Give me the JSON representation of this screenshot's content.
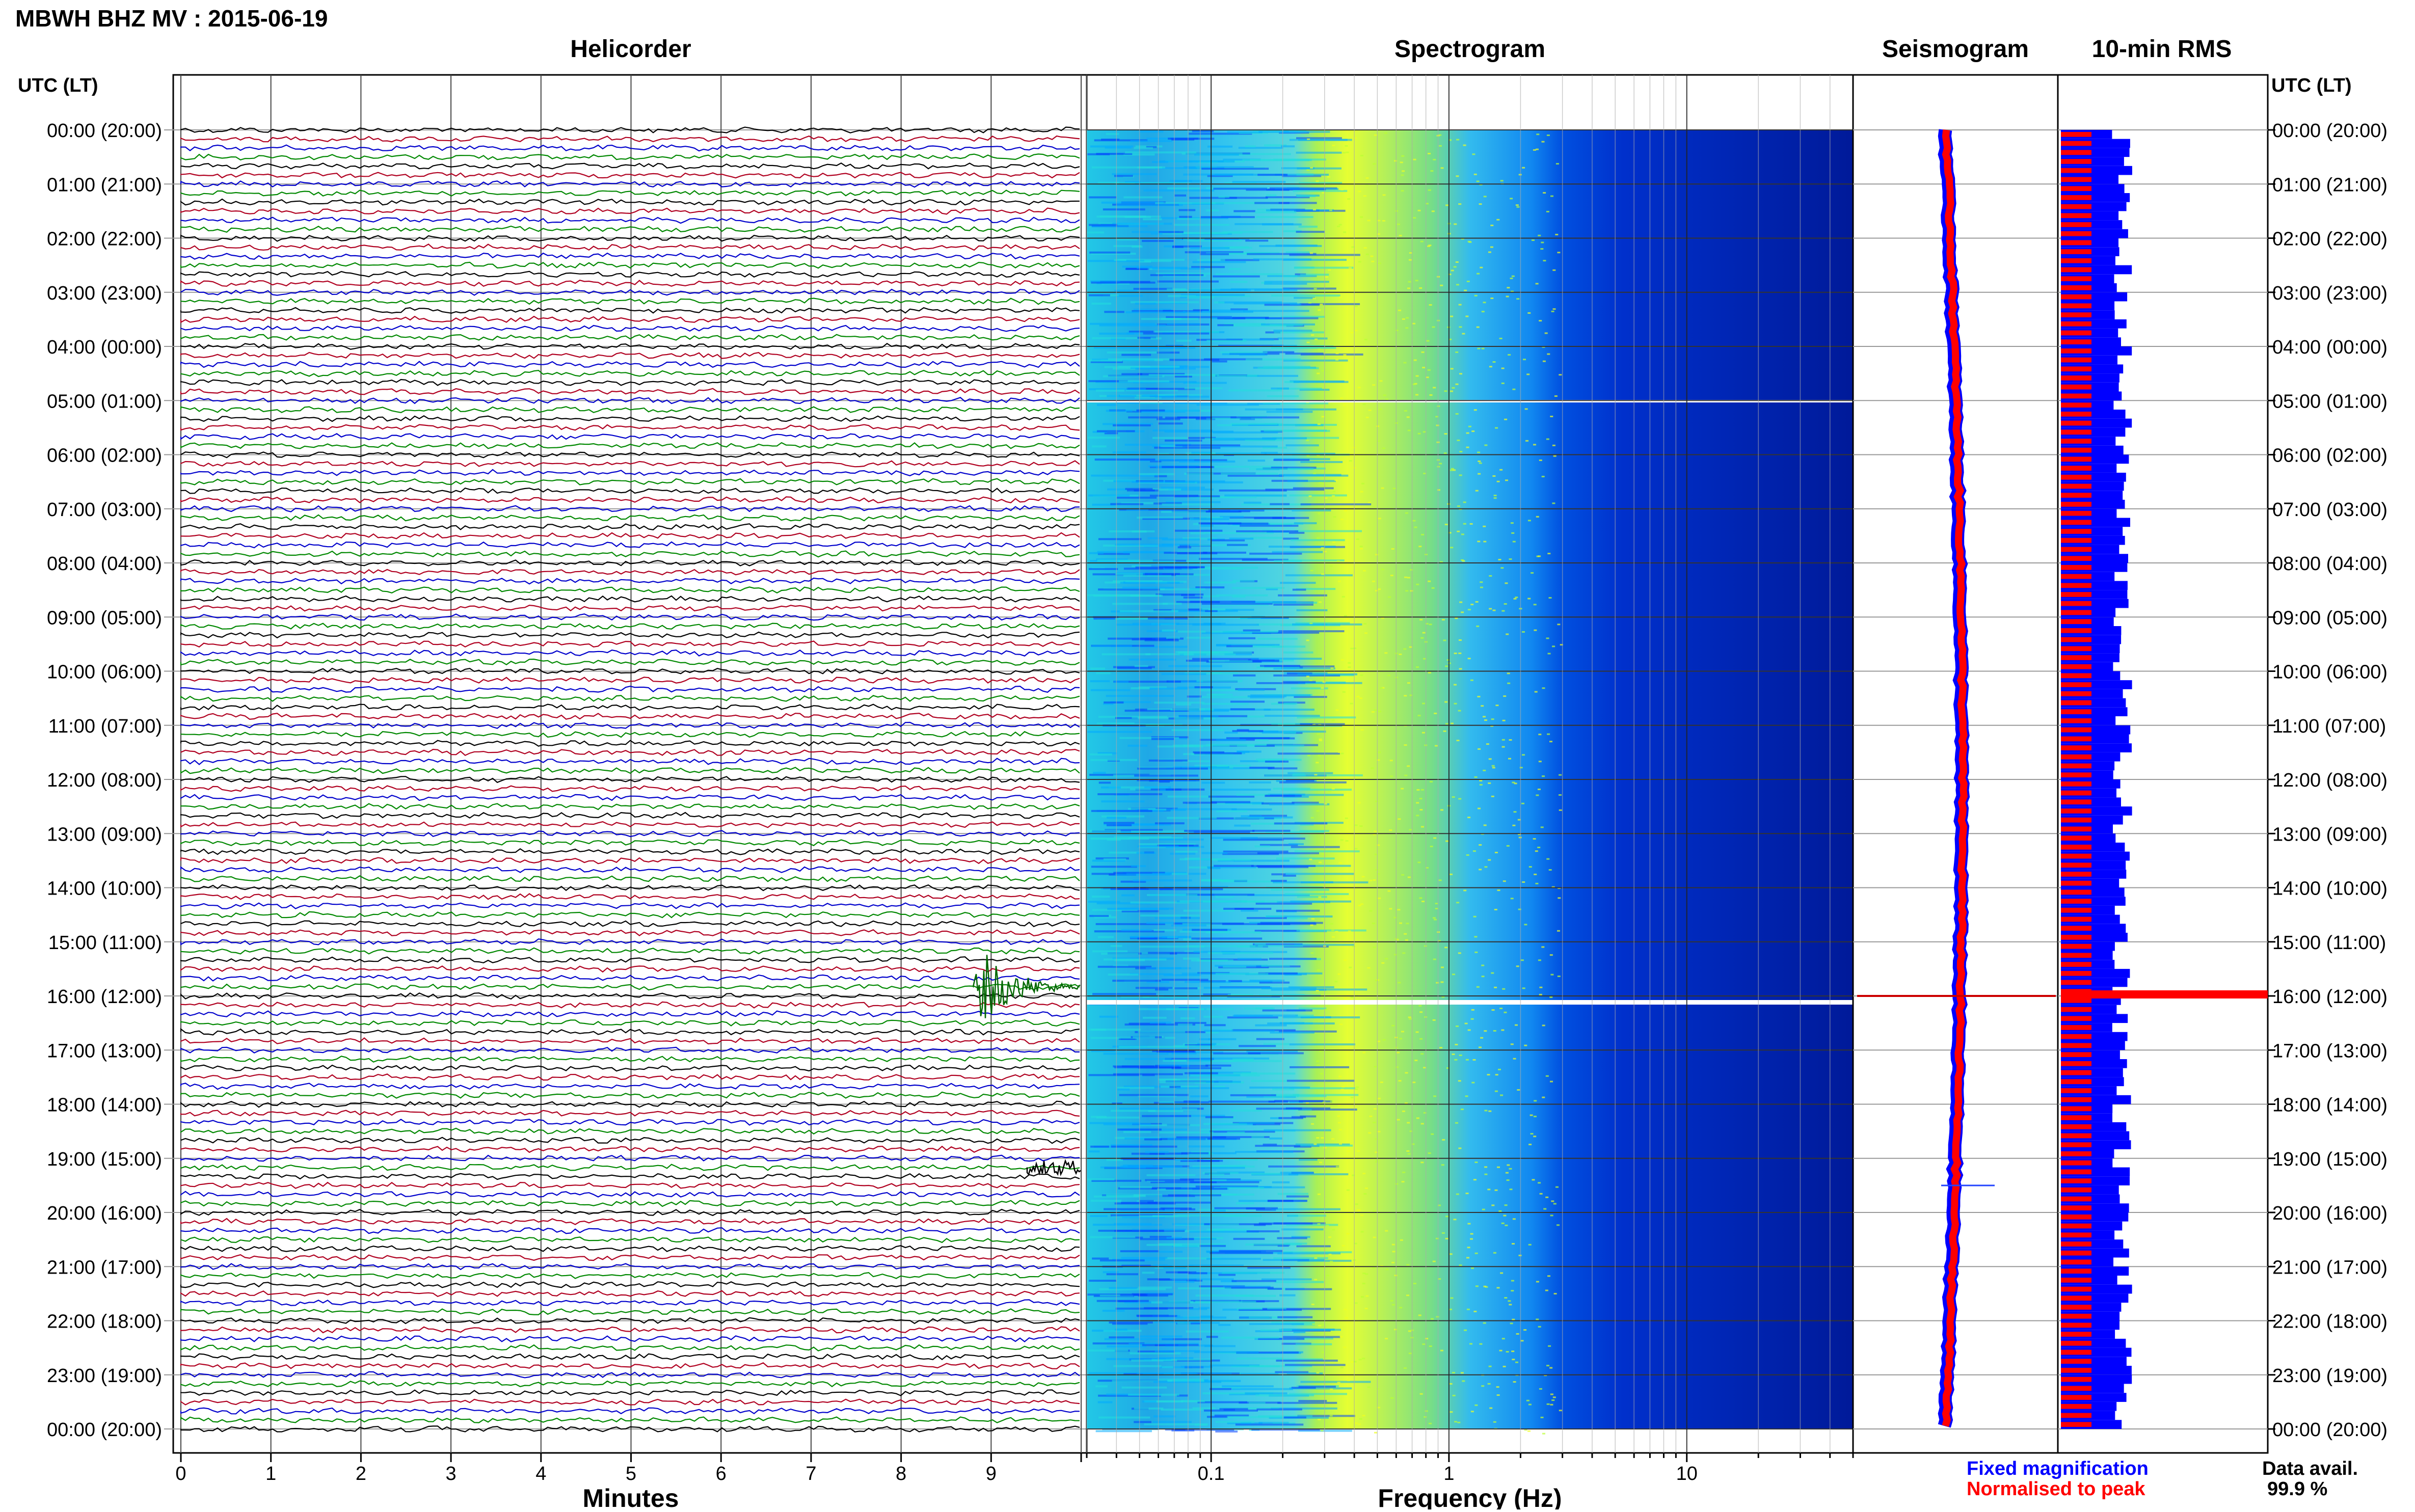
{
  "header": {
    "title": "MBWH BHZ MV : 2015-06-19",
    "utc_label": "UTC (LT)"
  },
  "panels": {
    "helicorder": {
      "title": "Helicorder",
      "xlabel": "Minutes"
    },
    "spectrogram": {
      "title": "Spectrogram",
      "xlabel": "Frequency (Hz)"
    },
    "seismogram": {
      "title": "Seismogram"
    },
    "rms": {
      "title": "10-min RMS"
    }
  },
  "legend": {
    "fixed": "Fixed magnification",
    "normalised": "Normalised to peak",
    "fixed_color": "#0000ff",
    "normalised_color": "#ff0000"
  },
  "data_avail": {
    "label": "Data avail.",
    "value": "99.9 %"
  },
  "colors": {
    "trace_cycle": [
      "#000000",
      "#b00020",
      "#0000cc",
      "#008800"
    ],
    "fixed": "#0000ff",
    "normalised": "#ff0000"
  },
  "chart_data": [
    {
      "type": "line",
      "panel": "helicorder",
      "title": "Helicorder",
      "xlabel": "Minutes",
      "x_ticks": [
        "0",
        "1",
        "2",
        "3",
        "4",
        "5",
        "6",
        "7",
        "8",
        "9"
      ],
      "xlim": [
        0,
        10
      ],
      "lines_per_hour": 6,
      "row_minutes": 10,
      "y_tick_labels": [
        "00:00 (20:00)",
        "01:00 (21:00)",
        "02:00 (22:00)",
        "03:00 (23:00)",
        "04:00 (00:00)",
        "05:00 (01:00)",
        "06:00 (02:00)",
        "07:00 (03:00)",
        "08:00 (04:00)",
        "09:00 (05:00)",
        "10:00 (06:00)",
        "11:00 (07:00)",
        "12:00 (08:00)",
        "13:00 (09:00)",
        "14:00 (10:00)",
        "15:00 (11:00)",
        "16:00 (12:00)",
        "17:00 (13:00)",
        "18:00 (14:00)",
        "19:00 (15:00)",
        "20:00 (16:00)",
        "21:00 (17:00)",
        "22:00 (18:00)",
        "23:00 (19:00)",
        "00:00 (20:00)"
      ],
      "events": [
        {
          "utc": "15:50",
          "start_minute": 8.8,
          "end_minute": 10,
          "note": "large event"
        },
        {
          "utc": "19:10",
          "start_minute": 9.4,
          "end_minute": 10,
          "note": "small event"
        }
      ]
    },
    {
      "type": "heatmap",
      "panel": "spectrogram",
      "title": "Spectrogram",
      "xlabel": "Frequency (Hz)",
      "x_scale": "log",
      "x_ticks": [
        "0.1",
        "1",
        "10"
      ],
      "xlim": [
        0.03,
        50
      ],
      "colormap": [
        "#0000aa",
        "#0044ff",
        "#00aaff",
        "#22dddd",
        "#bbff33",
        "#eeff22"
      ]
    },
    {
      "type": "line",
      "panel": "seismogram",
      "title": "Seismogram",
      "series": [
        {
          "name": "Fixed magnification",
          "color": "#0000ff"
        },
        {
          "name": "Normalised to peak",
          "color": "#ff0000"
        }
      ],
      "spike_utc": "16:00"
    },
    {
      "type": "bar",
      "panel": "rms",
      "title": "10-min RMS",
      "orientation": "horizontal",
      "series": [
        {
          "name": "Fixed magnification",
          "color": "#0000ff"
        },
        {
          "name": "Normalised to peak",
          "color": "#ff0000"
        }
      ],
      "peak_utc": "16:00"
    }
  ]
}
